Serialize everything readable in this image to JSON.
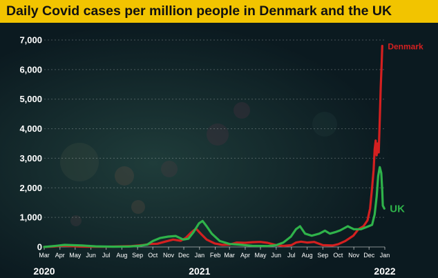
{
  "chart_data": {
    "type": "line",
    "title": "Daily Covid cases per million people in Denmark and the UK",
    "y_ticks": [
      0,
      1000,
      2000,
      3000,
      4000,
      5000,
      6000,
      7000
    ],
    "y_tick_labels": [
      "0",
      "1,000",
      "2,000",
      "3,000",
      "4,000",
      "5,000",
      "6,000",
      "7,000"
    ],
    "ylim": [
      0,
      7000
    ],
    "x_range": [
      "2020-03-01",
      "2022-01-01"
    ],
    "month_ticks": [
      {
        "date": "2020-03-01",
        "label": "Mar"
      },
      {
        "date": "2020-04-01",
        "label": "Apr"
      },
      {
        "date": "2020-05-01",
        "label": "May"
      },
      {
        "date": "2020-06-01",
        "label": "Jun"
      },
      {
        "date": "2020-07-01",
        "label": "Jul"
      },
      {
        "date": "2020-08-01",
        "label": "Aug"
      },
      {
        "date": "2020-09-01",
        "label": "Sep"
      },
      {
        "date": "2020-10-01",
        "label": "Oct"
      },
      {
        "date": "2020-11-01",
        "label": "Nov"
      },
      {
        "date": "2020-12-01",
        "label": "Dec"
      },
      {
        "date": "2021-01-01",
        "label": "Jan"
      },
      {
        "date": "2021-02-01",
        "label": "Feb"
      },
      {
        "date": "2021-03-01",
        "label": "Mar"
      },
      {
        "date": "2021-04-01",
        "label": "Apr"
      },
      {
        "date": "2021-05-01",
        "label": "May"
      },
      {
        "date": "2021-06-01",
        "label": "Jun"
      },
      {
        "date": "2021-07-01",
        "label": "Jul"
      },
      {
        "date": "2021-08-01",
        "label": "Aug"
      },
      {
        "date": "2021-09-01",
        "label": "Sep"
      },
      {
        "date": "2021-10-01",
        "label": "Oct"
      },
      {
        "date": "2021-11-01",
        "label": "Nov"
      },
      {
        "date": "2021-12-01",
        "label": "Dec"
      },
      {
        "date": "2022-01-01",
        "label": "Jan"
      }
    ],
    "year_labels": [
      {
        "date": "2020-03-01",
        "label": "2020"
      },
      {
        "date": "2021-01-01",
        "label": "2021"
      },
      {
        "date": "2022-01-01",
        "label": "2022"
      }
    ],
    "series": [
      {
        "name": "Denmark",
        "color": "#d42020",
        "points": [
          [
            "2020-03-01",
            0
          ],
          [
            "2020-03-20",
            15
          ],
          [
            "2020-04-05",
            40
          ],
          [
            "2020-04-20",
            30
          ],
          [
            "2020-05-10",
            15
          ],
          [
            "2020-06-01",
            8
          ],
          [
            "2020-07-01",
            10
          ],
          [
            "2020-08-01",
            20
          ],
          [
            "2020-08-20",
            30
          ],
          [
            "2020-09-10",
            60
          ],
          [
            "2020-09-25",
            100
          ],
          [
            "2020-10-10",
            110
          ],
          [
            "2020-10-25",
            180
          ],
          [
            "2020-11-10",
            250
          ],
          [
            "2020-11-25",
            210
          ],
          [
            "2020-12-05",
            310
          ],
          [
            "2020-12-15",
            480
          ],
          [
            "2020-12-25",
            620
          ],
          [
            "2021-01-05",
            420
          ],
          [
            "2021-01-15",
            250
          ],
          [
            "2021-01-31",
            120
          ],
          [
            "2021-02-15",
            70
          ],
          [
            "2021-03-01",
            80
          ],
          [
            "2021-03-15",
            150
          ],
          [
            "2021-04-01",
            140
          ],
          [
            "2021-04-15",
            160
          ],
          [
            "2021-05-01",
            170
          ],
          [
            "2021-05-15",
            140
          ],
          [
            "2021-05-31",
            70
          ],
          [
            "2021-06-15",
            35
          ],
          [
            "2021-07-01",
            60
          ],
          [
            "2021-07-10",
            150
          ],
          [
            "2021-07-20",
            180
          ],
          [
            "2021-08-01",
            150
          ],
          [
            "2021-08-15",
            170
          ],
          [
            "2021-09-01",
            60
          ],
          [
            "2021-09-20",
            50
          ],
          [
            "2021-10-01",
            90
          ],
          [
            "2021-10-15",
            200
          ],
          [
            "2021-10-31",
            380
          ],
          [
            "2021-11-10",
            600
          ],
          [
            "2021-11-20",
            700
          ],
          [
            "2021-11-28",
            900
          ],
          [
            "2021-12-03",
            1300
          ],
          [
            "2021-12-07",
            2000
          ],
          [
            "2021-12-10",
            2600
          ],
          [
            "2021-12-12",
            3300
          ],
          [
            "2021-12-14",
            3600
          ],
          [
            "2021-12-16",
            3100
          ],
          [
            "2021-12-18",
            3500
          ],
          [
            "2021-12-20",
            3200
          ],
          [
            "2021-12-22",
            4300
          ],
          [
            "2021-12-24",
            5400
          ],
          [
            "2021-12-26",
            6300
          ],
          [
            "2021-12-27",
            6800
          ]
        ]
      },
      {
        "name": "UK",
        "color": "#2fb34a",
        "points": [
          [
            "2020-03-01",
            0
          ],
          [
            "2020-03-25",
            40
          ],
          [
            "2020-04-10",
            70
          ],
          [
            "2020-04-25",
            60
          ],
          [
            "2020-05-15",
            50
          ],
          [
            "2020-06-10",
            20
          ],
          [
            "2020-07-15",
            10
          ],
          [
            "2020-08-15",
            15
          ],
          [
            "2020-09-05",
            40
          ],
          [
            "2020-09-20",
            80
          ],
          [
            "2020-10-01",
            200
          ],
          [
            "2020-10-15",
            300
          ],
          [
            "2020-10-31",
            350
          ],
          [
            "2020-11-15",
            370
          ],
          [
            "2020-11-30",
            250
          ],
          [
            "2020-12-10",
            280
          ],
          [
            "2020-12-20",
            500
          ],
          [
            "2020-12-31",
            800
          ],
          [
            "2021-01-07",
            880
          ],
          [
            "2021-01-15",
            700
          ],
          [
            "2021-01-25",
            450
          ],
          [
            "2021-02-10",
            200
          ],
          [
            "2021-03-01",
            100
          ],
          [
            "2021-03-20",
            80
          ],
          [
            "2021-04-15",
            40
          ],
          [
            "2021-05-15",
            30
          ],
          [
            "2021-06-01",
            60
          ],
          [
            "2021-06-15",
            150
          ],
          [
            "2021-06-30",
            350
          ],
          [
            "2021-07-10",
            600
          ],
          [
            "2021-07-18",
            700
          ],
          [
            "2021-07-28",
            450
          ],
          [
            "2021-08-10",
            380
          ],
          [
            "2021-08-25",
            450
          ],
          [
            "2021-09-05",
            550
          ],
          [
            "2021-09-15",
            450
          ],
          [
            "2021-09-25",
            500
          ],
          [
            "2021-10-05",
            560
          ],
          [
            "2021-10-20",
            700
          ],
          [
            "2021-11-01",
            600
          ],
          [
            "2021-11-15",
            600
          ],
          [
            "2021-11-30",
            700
          ],
          [
            "2021-12-07",
            750
          ],
          [
            "2021-12-12",
            1100
          ],
          [
            "2021-12-16",
            1700
          ],
          [
            "2021-12-19",
            2400
          ],
          [
            "2021-12-22",
            2700
          ],
          [
            "2021-12-25",
            2500
          ],
          [
            "2021-12-27",
            1900
          ],
          [
            "2021-12-28",
            1400
          ],
          [
            "2021-12-31",
            1300
          ]
        ]
      }
    ]
  }
}
